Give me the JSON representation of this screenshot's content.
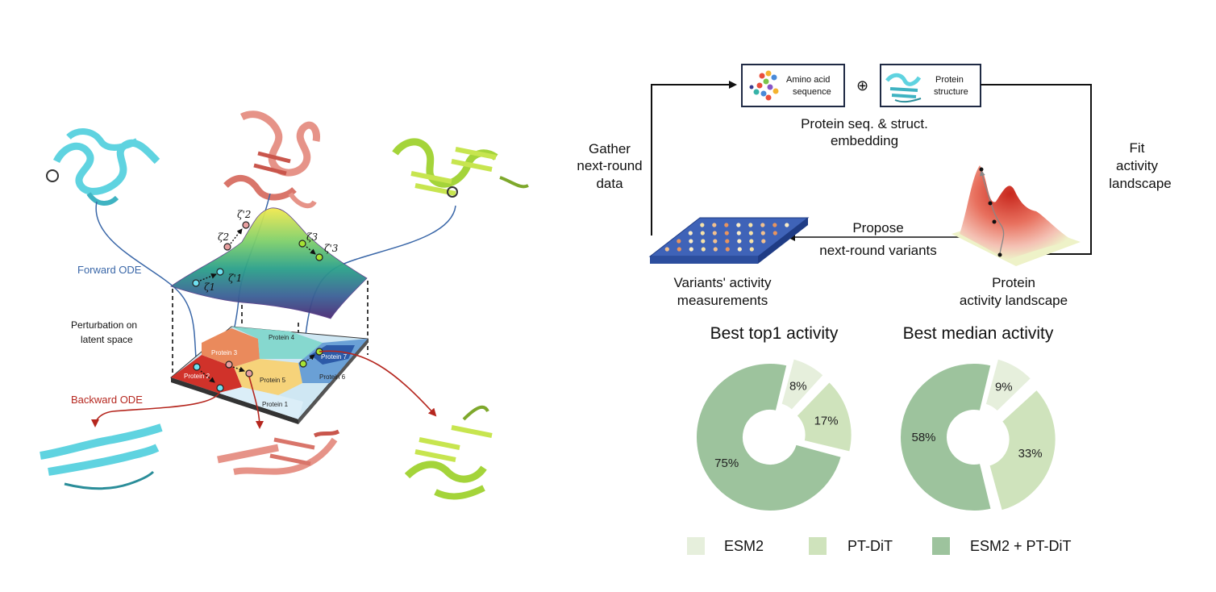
{
  "left_panel": {
    "forward_ode": "Forward ODE",
    "backward_ode": "Backward ODE",
    "perturbation_line1": "Perturbation on",
    "perturbation_line2": "latent space",
    "regions": [
      "Protein 1",
      "Protein 2",
      "Protein 3",
      "Protein 4",
      "Protein 5",
      "Protein 6",
      "Protein 7"
    ],
    "zeta_labels": [
      "ζ1",
      "ζ'1",
      "ζ2",
      "ζ'2",
      "ζ3",
      "ζ'3"
    ],
    "colors": {
      "forward": "#3a67a8",
      "backward": "#b5261e",
      "cyan_protein": "#5fd3e0",
      "salmon_protein": "#e69388",
      "lime_protein": "#a4d43a"
    }
  },
  "workflow": {
    "amino_acid_line1": "Amino acid",
    "amino_acid_line2": "sequence",
    "oplus": "⊕",
    "structure_line1": "Protein",
    "structure_line2": "structure",
    "embedding_line1": "Protein seq. & struct.",
    "embedding_line2": "embedding",
    "gather_line1": "Gather",
    "gather_line2": "next-round",
    "gather_line3": "data",
    "fit_line1": "Fit",
    "fit_line2": "activity",
    "fit_line3": "landscape",
    "propose_line1": "Propose",
    "propose_line2": "next-round variants",
    "variants_line1": "Variants' activity",
    "variants_line2": "measurements",
    "landscape_line1": "Protein",
    "landscape_line2": "activity landscape"
  },
  "chart_data": [
    {
      "type": "pie",
      "title": "Best top1 activity",
      "categories": [
        "ESM2",
        "PT-DiT",
        "ESM2 + PT-DiT"
      ],
      "values": [
        8,
        17,
        75
      ],
      "labels": [
        "8%",
        "17%",
        "75%"
      ],
      "colors": [
        "#e6efdc",
        "#cfe3bc",
        "#9dc39d"
      ],
      "donut": true
    },
    {
      "type": "pie",
      "title": "Best median activity",
      "categories": [
        "ESM2",
        "PT-DiT",
        "ESM2 + PT-DiT"
      ],
      "values": [
        9,
        33,
        58
      ],
      "labels": [
        "9%",
        "33%",
        "58%"
      ],
      "colors": [
        "#e6efdc",
        "#cfe3bc",
        "#9dc39d"
      ],
      "donut": true
    }
  ],
  "legend": [
    {
      "label": "ESM2",
      "color": "#e6efdc"
    },
    {
      "label": "PT-DiT",
      "color": "#cfe3bc"
    },
    {
      "label": "ESM2 + PT-DiT",
      "color": "#9dc39d"
    }
  ]
}
